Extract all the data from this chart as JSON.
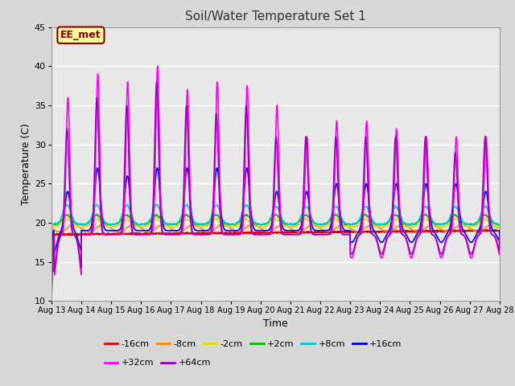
{
  "title": "Soil/Water Temperature Set 1",
  "xlabel": "Time",
  "ylabel": "Temperature (C)",
  "ylim": [
    10,
    45
  ],
  "bg_color": "#e8e8e8",
  "fig_bg_color": "#d8d8d8",
  "annotation_text": "EE_met",
  "annotation_bg": "#ffff99",
  "annotation_border": "#8b0000",
  "grid_color": "white",
  "series": {
    "-16cm": {
      "color": "#dd0000",
      "linewidth": 1.2
    },
    "-8cm": {
      "color": "#ff8800",
      "linewidth": 1.2
    },
    "-2cm": {
      "color": "#dddd00",
      "linewidth": 1.2
    },
    "+2cm": {
      "color": "#00bb00",
      "linewidth": 1.2
    },
    "+8cm": {
      "color": "#00cccc",
      "linewidth": 1.2
    },
    "+16cm": {
      "color": "#0000cc",
      "linewidth": 1.2
    },
    "+32cm": {
      "color": "#ff00ff",
      "linewidth": 1.2
    },
    "+64cm": {
      "color": "#9900bb",
      "linewidth": 1.2
    }
  },
  "xtick_labels": [
    "Aug 13",
    "Aug 14",
    "Aug 15",
    "Aug 16",
    "Aug 17",
    "Aug 18",
    "Aug 19",
    "Aug 20",
    "Aug 21",
    "Aug 22",
    "Aug 23",
    "Aug 24",
    "Aug 25",
    "Aug 26",
    "Aug 27",
    "Aug 28"
  ],
  "ytick_labels": [
    10,
    15,
    20,
    25,
    30,
    35,
    40,
    45
  ],
  "n_days": 15,
  "pts_per_day": 144
}
